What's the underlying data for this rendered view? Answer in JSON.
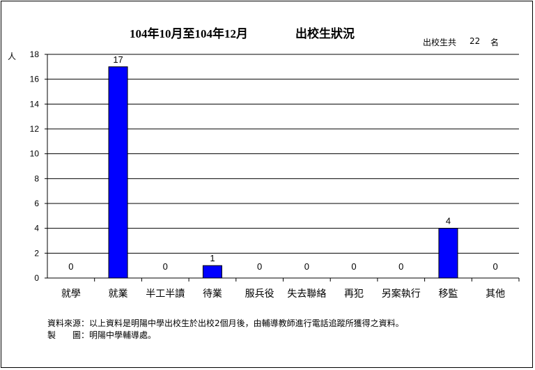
{
  "title_period": "104年10月至104年12月",
  "title_main": "出校生狀況",
  "total": {
    "label": "出校生共",
    "value": "22",
    "unit": "名"
  },
  "notes": [
    "資料來源：以上資料是明陽中學出校生於出校2個月後，由輔導教師進行電話追蹤所獲得之資料。",
    "製　　圖：明陽中學輔導處。"
  ],
  "chart_data": {
    "type": "bar",
    "ylabel": "人",
    "ylim": [
      0,
      18
    ],
    "yticks": [
      0,
      2,
      4,
      6,
      8,
      10,
      12,
      14,
      16,
      18
    ],
    "grid": true,
    "categories": [
      "就學",
      "就業",
      "半工半讀",
      "待業",
      "服兵役",
      "失去聯絡",
      "再犯",
      "另案執行",
      "移監",
      "其他"
    ],
    "values": [
      0,
      17,
      0,
      1,
      0,
      0,
      0,
      0,
      4,
      0
    ],
    "bar_color": "#0000ff"
  }
}
